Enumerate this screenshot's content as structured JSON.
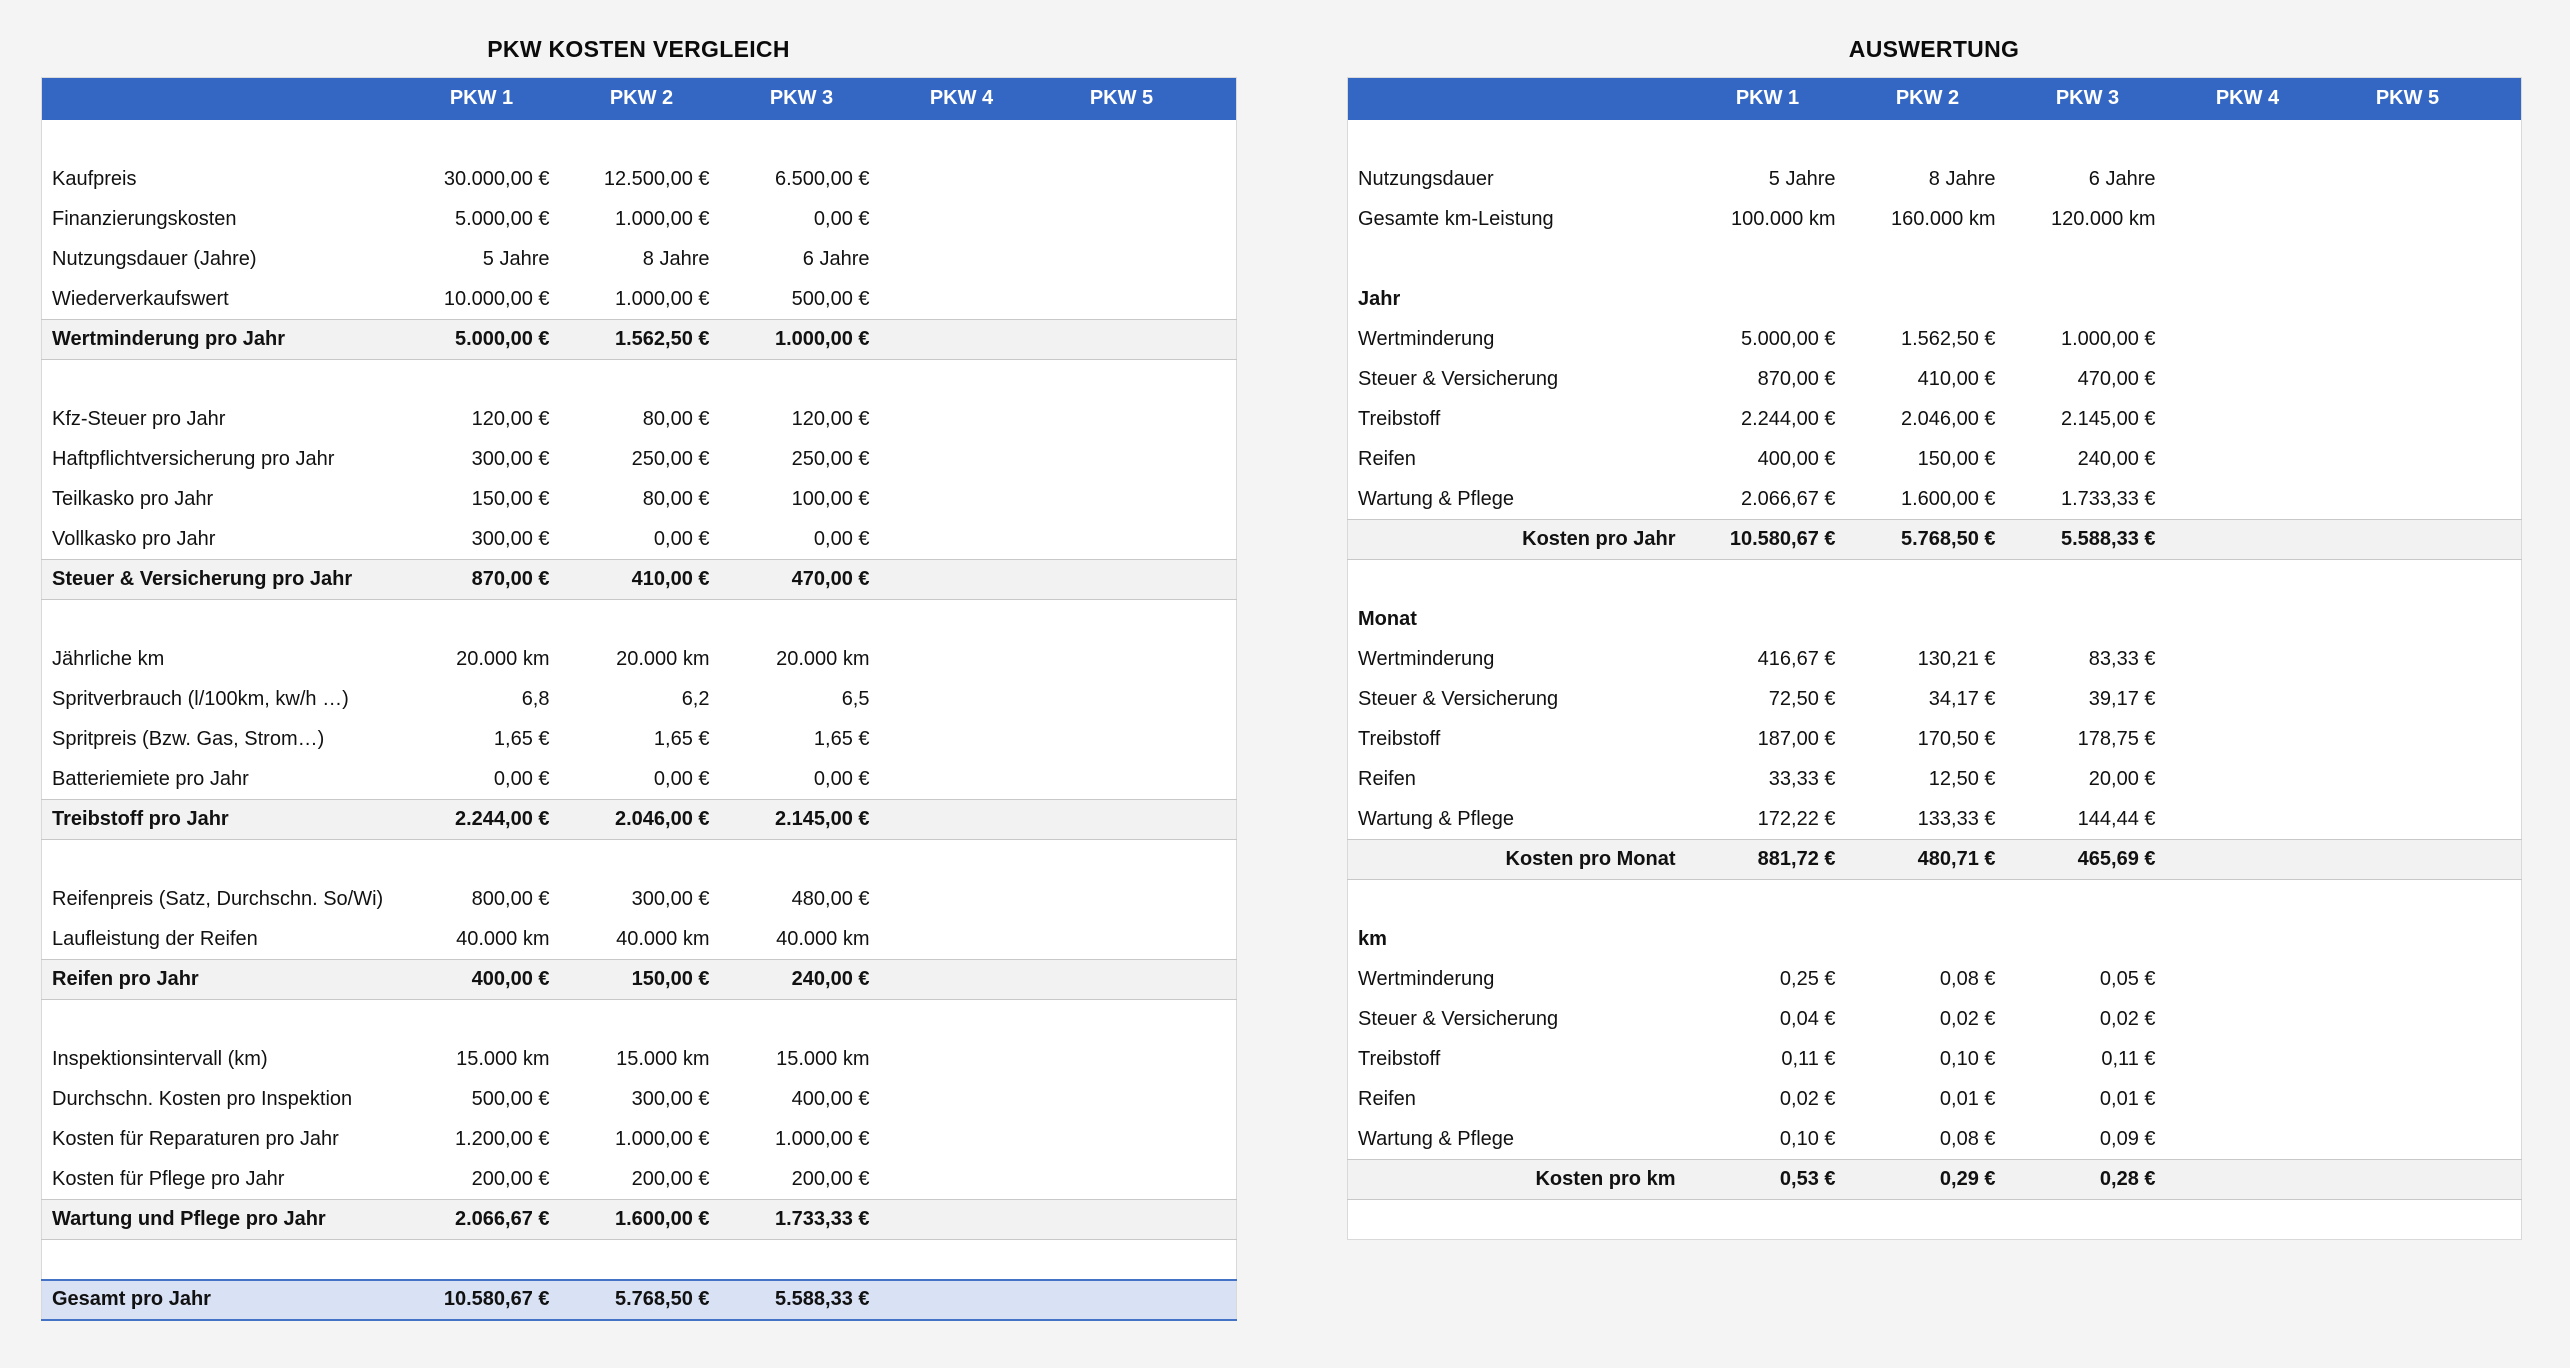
{
  "colors": {
    "page_bg": "#f4f4f4",
    "header_bg": "#3466C4",
    "header_text": "#ffffff",
    "subtotal_bg": "#f2f2f2",
    "total_bg": "#d9e1f5",
    "total_border": "#4472c4"
  },
  "tables": {
    "comparison": {
      "title": "PKW KOSTEN VERGLEICH",
      "header": [
        "",
        "PKW 1",
        "PKW 2",
        "PKW 3",
        "PKW 4",
        "PKW 5"
      ],
      "rows": [
        {
          "type": "spacer"
        },
        {
          "type": "data",
          "label": "Kaufpreis",
          "values": [
            "30.000,00 €",
            "12.500,00 €",
            "6.500,00 €",
            "",
            ""
          ]
        },
        {
          "type": "data",
          "label": "Finanzierungskosten",
          "values": [
            "5.000,00 €",
            "1.000,00 €",
            "0,00 €",
            "",
            ""
          ]
        },
        {
          "type": "data",
          "label": "Nutzungsdauer (Jahre)",
          "values": [
            "5 Jahre",
            "8 Jahre",
            "6 Jahre",
            "",
            ""
          ]
        },
        {
          "type": "data",
          "label": "Wiederverkaufswert",
          "values": [
            "10.000,00 €",
            "1.000,00 €",
            "500,00 €",
            "",
            ""
          ]
        },
        {
          "type": "subtotal",
          "label": "Wertminderung pro Jahr",
          "values": [
            "5.000,00 €",
            "1.562,50 €",
            "1.000,00 €",
            "",
            ""
          ]
        },
        {
          "type": "spacer"
        },
        {
          "type": "data",
          "label": "Kfz-Steuer pro Jahr",
          "values": [
            "120,00 €",
            "80,00 €",
            "120,00 €",
            "",
            ""
          ]
        },
        {
          "type": "data",
          "label": "Haftpflichtversicherung pro Jahr",
          "values": [
            "300,00 €",
            "250,00 €",
            "250,00 €",
            "",
            ""
          ]
        },
        {
          "type": "data",
          "label": "Teilkasko pro Jahr",
          "values": [
            "150,00 €",
            "80,00 €",
            "100,00 €",
            "",
            ""
          ]
        },
        {
          "type": "data",
          "label": "Vollkasko pro Jahr",
          "values": [
            "300,00 €",
            "0,00 €",
            "0,00 €",
            "",
            ""
          ]
        },
        {
          "type": "subtotal",
          "label": "Steuer & Versicherung pro Jahr",
          "values": [
            "870,00 €",
            "410,00 €",
            "470,00 €",
            "",
            ""
          ]
        },
        {
          "type": "spacer"
        },
        {
          "type": "data",
          "label": "Jährliche km",
          "values": [
            "20.000 km",
            "20.000 km",
            "20.000 km",
            "",
            ""
          ]
        },
        {
          "type": "data",
          "label": "Spritverbrauch (l/100km, kw/h …)",
          "values": [
            "6,8",
            "6,2",
            "6,5",
            "",
            ""
          ]
        },
        {
          "type": "data",
          "label": "Spritpreis (Bzw. Gas, Strom…)",
          "values": [
            "1,65 €",
            "1,65 €",
            "1,65 €",
            "",
            ""
          ]
        },
        {
          "type": "data",
          "label": "Batteriemiete pro Jahr",
          "values": [
            "0,00 €",
            "0,00 €",
            "0,00 €",
            "",
            ""
          ]
        },
        {
          "type": "subtotal",
          "label": "Treibstoff pro Jahr",
          "values": [
            "2.244,00 €",
            "2.046,00 €",
            "2.145,00 €",
            "",
            ""
          ]
        },
        {
          "type": "spacer"
        },
        {
          "type": "data",
          "label": "Reifenpreis (Satz, Durchschn. So/Wi)",
          "values": [
            "800,00 €",
            "300,00 €",
            "480,00 €",
            "",
            ""
          ]
        },
        {
          "type": "data",
          "label": "Laufleistung der Reifen",
          "values": [
            "40.000 km",
            "40.000 km",
            "40.000 km",
            "",
            ""
          ]
        },
        {
          "type": "subtotal",
          "label": "Reifen pro Jahr",
          "values": [
            "400,00 €",
            "150,00 €",
            "240,00 €",
            "",
            ""
          ]
        },
        {
          "type": "spacer"
        },
        {
          "type": "data",
          "label": "Inspektionsintervall (km)",
          "values": [
            "15.000 km",
            "15.000 km",
            "15.000 km",
            "",
            ""
          ]
        },
        {
          "type": "data",
          "label": "Durchschn. Kosten pro Inspektion",
          "values": [
            "500,00 €",
            "300,00 €",
            "400,00 €",
            "",
            ""
          ]
        },
        {
          "type": "data",
          "label": "Kosten für Reparaturen pro Jahr",
          "values": [
            "1.200,00 €",
            "1.000,00 €",
            "1.000,00 €",
            "",
            ""
          ]
        },
        {
          "type": "data",
          "label": "Kosten für Pflege pro Jahr",
          "values": [
            "200,00 €",
            "200,00 €",
            "200,00 €",
            "",
            ""
          ]
        },
        {
          "type": "subtotal",
          "label": "Wartung und Pflege pro Jahr",
          "values": [
            "2.066,67 €",
            "1.600,00 €",
            "1.733,33 €",
            "",
            ""
          ]
        },
        {
          "type": "spacer"
        },
        {
          "type": "total",
          "label": "Gesamt pro Jahr",
          "values": [
            "10.580,67 €",
            "5.768,50 €",
            "5.588,33 €",
            "",
            ""
          ]
        }
      ]
    },
    "evaluation": {
      "title": "AUSWERTUNG",
      "header": [
        "",
        "PKW 1",
        "PKW 2",
        "PKW 3",
        "PKW 4",
        "PKW 5"
      ],
      "rows": [
        {
          "type": "spacer"
        },
        {
          "type": "data",
          "label": "Nutzungsdauer",
          "values": [
            "5 Jahre",
            "8 Jahre",
            "6 Jahre",
            "",
            ""
          ]
        },
        {
          "type": "data",
          "label": "Gesamte km-Leistung",
          "values": [
            "100.000 km",
            "160.000 km",
            "120.000 km",
            "",
            ""
          ]
        },
        {
          "type": "spacer"
        },
        {
          "type": "section",
          "label": "Jahr",
          "values": [
            "",
            "",
            "",
            "",
            ""
          ]
        },
        {
          "type": "data",
          "label": "Wertminderung",
          "values": [
            "5.000,00 €",
            "1.562,50 €",
            "1.000,00 €",
            "",
            ""
          ]
        },
        {
          "type": "data",
          "label": "Steuer & Versicherung",
          "values": [
            "870,00 €",
            "410,00 €",
            "470,00 €",
            "",
            ""
          ]
        },
        {
          "type": "data",
          "label": "Treibstoff",
          "values": [
            "2.244,00 €",
            "2.046,00 €",
            "2.145,00 €",
            "",
            ""
          ]
        },
        {
          "type": "data",
          "label": "Reifen",
          "values": [
            "400,00 €",
            "150,00 €",
            "240,00 €",
            "",
            ""
          ]
        },
        {
          "type": "data",
          "label": "Wartung & Pflege",
          "values": [
            "2.066,67 €",
            "1.600,00 €",
            "1.733,33 €",
            "",
            ""
          ]
        },
        {
          "type": "subtotal_right",
          "label": "Kosten pro Jahr",
          "values": [
            "10.580,67 €",
            "5.768,50 €",
            "5.588,33 €",
            "",
            ""
          ]
        },
        {
          "type": "spacer"
        },
        {
          "type": "section",
          "label": "Monat",
          "values": [
            "",
            "",
            "",
            "",
            ""
          ]
        },
        {
          "type": "data",
          "label": "Wertminderung",
          "values": [
            "416,67 €",
            "130,21 €",
            "83,33 €",
            "",
            ""
          ]
        },
        {
          "type": "data",
          "label": "Steuer & Versicherung",
          "values": [
            "72,50 €",
            "34,17 €",
            "39,17 €",
            "",
            ""
          ]
        },
        {
          "type": "data",
          "label": "Treibstoff",
          "values": [
            "187,00 €",
            "170,50 €",
            "178,75 €",
            "",
            ""
          ]
        },
        {
          "type": "data",
          "label": "Reifen",
          "values": [
            "33,33 €",
            "12,50 €",
            "20,00 €",
            "",
            ""
          ]
        },
        {
          "type": "data",
          "label": "Wartung & Pflege",
          "values": [
            "172,22 €",
            "133,33 €",
            "144,44 €",
            "",
            ""
          ]
        },
        {
          "type": "subtotal_right",
          "label": "Kosten pro Monat",
          "values": [
            "881,72 €",
            "480,71 €",
            "465,69 €",
            "",
            ""
          ]
        },
        {
          "type": "spacer"
        },
        {
          "type": "section",
          "label": "km",
          "values": [
            "",
            "",
            "",
            "",
            ""
          ]
        },
        {
          "type": "data",
          "label": "Wertminderung",
          "values": [
            "0,25 €",
            "0,08 €",
            "0,05 €",
            "",
            ""
          ]
        },
        {
          "type": "data",
          "label": "Steuer & Versicherung",
          "values": [
            "0,04 €",
            "0,02 €",
            "0,02 €",
            "",
            ""
          ]
        },
        {
          "type": "data",
          "label": "Treibstoff",
          "values": [
            "0,11 €",
            "0,10 €",
            "0,11 €",
            "",
            ""
          ]
        },
        {
          "type": "data",
          "label": "Reifen",
          "values": [
            "0,02 €",
            "0,01 €",
            "0,01 €",
            "",
            ""
          ]
        },
        {
          "type": "data",
          "label": "Wartung & Pflege",
          "values": [
            "0,10 €",
            "0,08 €",
            "0,09 €",
            "",
            ""
          ]
        },
        {
          "type": "subtotal_right",
          "label": "Kosten pro km",
          "values": [
            "0,53 €",
            "0,29 €",
            "0,28 €",
            "",
            ""
          ]
        },
        {
          "type": "spacer"
        }
      ]
    }
  }
}
